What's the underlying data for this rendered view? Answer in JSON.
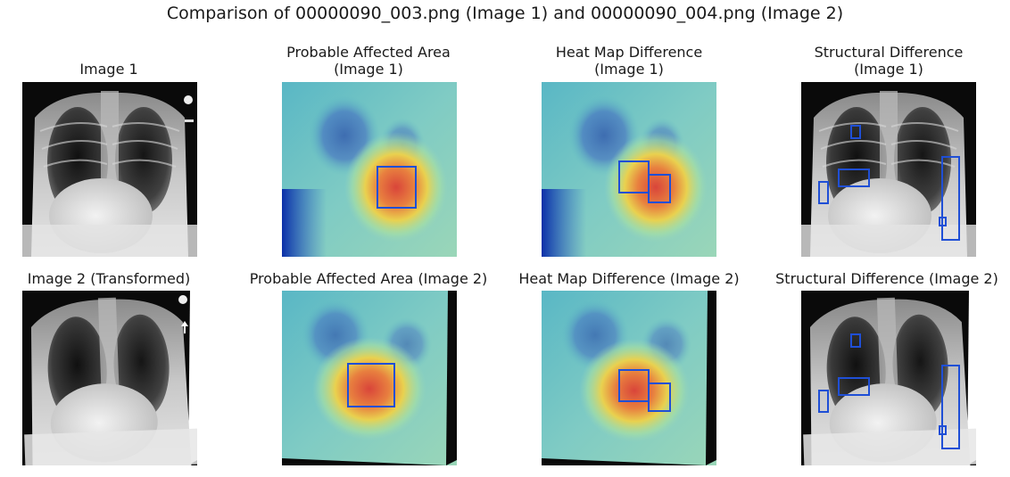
{
  "figure": {
    "title": "Comparison of 00000090_003.png (Image 1) and 00000090_004.png (Image 2)"
  },
  "rows": [
    {
      "panels": [
        {
          "title": [
            "Image 1"
          ],
          "overlay": "none",
          "boxes": []
        },
        {
          "title": [
            "Probable Affected Area",
            "(Image 1)"
          ],
          "overlay": "heatmap",
          "boxes": [
            "affected-area"
          ]
        },
        {
          "title": [
            "Heat Map Difference",
            "(Image 1)"
          ],
          "overlay": "heatmap",
          "boxes": [
            "difference-left",
            "difference-right"
          ]
        },
        {
          "title": [
            "Structural Difference",
            "(Image 1)"
          ],
          "overlay": "none",
          "boxes": [
            "upper-mediastinum",
            "cardiac-border",
            "left-lateral",
            "right-lateral-tall",
            "right-lateral-small"
          ]
        }
      ]
    },
    {
      "panels": [
        {
          "title": [
            "Image 2 (Transformed)"
          ],
          "overlay": "none",
          "boxes": []
        },
        {
          "title": [
            "Probable Affected Area (Image 2)"
          ],
          "overlay": "heatmap",
          "boxes": [
            "affected-area"
          ]
        },
        {
          "title": [
            "Heat Map Difference (Image 2)"
          ],
          "overlay": "heatmap",
          "boxes": [
            "difference-left",
            "difference-right"
          ]
        },
        {
          "title": [
            "Structural Difference (Image 2)"
          ],
          "overlay": "none",
          "boxes": [
            "upper-mediastinum",
            "cardiac-border",
            "left-lateral",
            "right-lateral-tall",
            "right-lateral-small"
          ]
        }
      ]
    }
  ],
  "colors": {
    "box_stroke": "#1f4fd6",
    "background": "#ffffff"
  }
}
